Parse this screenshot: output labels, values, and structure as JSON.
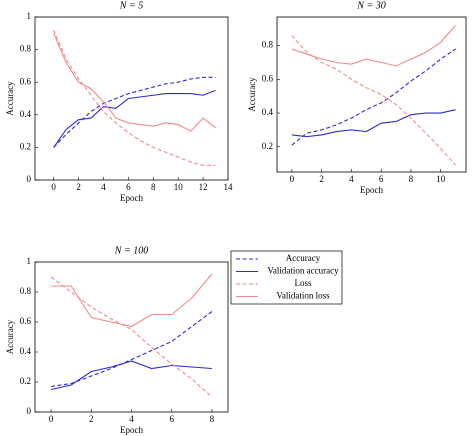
{
  "chart_data": [
    {
      "type": "line",
      "title": "N = 5",
      "x_label": "Epoch",
      "y_label": "Accuracy",
      "x": [
        0,
        1,
        2,
        3,
        4,
        5,
        6,
        7,
        8,
        9,
        10,
        11,
        12,
        13
      ],
      "xlim": [
        -1.5,
        14
      ],
      "xticks": [
        0,
        2,
        4,
        6,
        8,
        10,
        12,
        14
      ],
      "ylim": [
        0,
        1
      ],
      "yticks": [
        0,
        0.2,
        0.4,
        0.6,
        0.8,
        1
      ],
      "series": [
        {
          "name": "Accuracy",
          "color": "#2a2ad0",
          "dashed": true,
          "values": [
            0.2,
            0.28,
            0.35,
            0.42,
            0.47,
            0.5,
            0.53,
            0.55,
            0.57,
            0.59,
            0.6,
            0.62,
            0.63,
            0.63
          ]
        },
        {
          "name": "Validation accuracy",
          "color": "#2a2ad0",
          "dashed": false,
          "values": [
            0.2,
            0.31,
            0.37,
            0.38,
            0.45,
            0.44,
            0.5,
            0.51,
            0.52,
            0.53,
            0.53,
            0.53,
            0.52,
            0.55
          ]
        },
        {
          "name": "Loss",
          "color": "#f28a8a",
          "dashed": true,
          "values": [
            0.92,
            0.74,
            0.62,
            0.52,
            0.42,
            0.35,
            0.29,
            0.24,
            0.2,
            0.17,
            0.14,
            0.11,
            0.09,
            0.09
          ]
        },
        {
          "name": "Validation loss",
          "color": "#f28a8a",
          "dashed": false,
          "values": [
            0.9,
            0.72,
            0.6,
            0.56,
            0.48,
            0.38,
            0.35,
            0.34,
            0.33,
            0.35,
            0.34,
            0.3,
            0.38,
            0.32
          ]
        }
      ]
    },
    {
      "type": "line",
      "title": "N = 30",
      "x_label": "Epoch",
      "y_label": "Accuracy",
      "x": [
        0,
        1,
        2,
        3,
        4,
        5,
        6,
        7,
        8,
        9,
        10,
        11
      ],
      "xlim": [
        -1,
        11.7
      ],
      "xticks": [
        0,
        2,
        4,
        6,
        8,
        10
      ],
      "ylim": [
        0.05,
        0.97
      ],
      "yticks": [
        0.2,
        0.4,
        0.6,
        0.8
      ],
      "series": [
        {
          "name": "Accuracy",
          "color": "#2a2ad0",
          "dashed": true,
          "values": [
            0.21,
            0.28,
            0.3,
            0.33,
            0.37,
            0.42,
            0.46,
            0.52,
            0.59,
            0.65,
            0.72,
            0.78
          ]
        },
        {
          "name": "Validation accuracy",
          "color": "#2a2ad0",
          "dashed": false,
          "values": [
            0.27,
            0.26,
            0.27,
            0.29,
            0.3,
            0.29,
            0.34,
            0.35,
            0.39,
            0.4,
            0.4,
            0.42
          ]
        },
        {
          "name": "Loss",
          "color": "#f28a8a",
          "dashed": true,
          "values": [
            0.86,
            0.76,
            0.7,
            0.66,
            0.6,
            0.55,
            0.51,
            0.45,
            0.37,
            0.28,
            0.19,
            0.09
          ]
        },
        {
          "name": "Validation loss",
          "color": "#f28a8a",
          "dashed": false,
          "values": [
            0.78,
            0.75,
            0.72,
            0.7,
            0.69,
            0.72,
            0.7,
            0.68,
            0.72,
            0.76,
            0.82,
            0.92
          ]
        }
      ]
    },
    {
      "type": "line",
      "title": "N = 100",
      "x_label": "Epoch",
      "y_label": "Accuracy",
      "x": [
        0,
        1,
        2,
        3,
        4,
        5,
        6,
        7,
        8
      ],
      "xlim": [
        -0.8,
        8.8
      ],
      "xticks": [
        0,
        2,
        4,
        6,
        8
      ],
      "ylim": [
        0,
        1
      ],
      "yticks": [
        0,
        0.2,
        0.4,
        0.6,
        0.8,
        1
      ],
      "series": [
        {
          "name": "Accuracy",
          "color": "#2a2ad0",
          "dashed": true,
          "values": [
            0.17,
            0.19,
            0.24,
            0.29,
            0.35,
            0.41,
            0.47,
            0.57,
            0.67
          ]
        },
        {
          "name": "Validation accuracy",
          "color": "#2a2ad0",
          "dashed": false,
          "values": [
            0.15,
            0.18,
            0.27,
            0.3,
            0.34,
            0.29,
            0.31,
            0.3,
            0.29
          ]
        },
        {
          "name": "Loss",
          "color": "#f28a8a",
          "dashed": true,
          "values": [
            0.9,
            0.8,
            0.7,
            0.62,
            0.55,
            0.43,
            0.32,
            0.22,
            0.1
          ]
        },
        {
          "name": "Validation loss",
          "color": "#f28a8a",
          "dashed": false,
          "values": [
            0.84,
            0.84,
            0.63,
            0.6,
            0.57,
            0.65,
            0.65,
            0.76,
            0.92
          ]
        }
      ]
    }
  ]
}
